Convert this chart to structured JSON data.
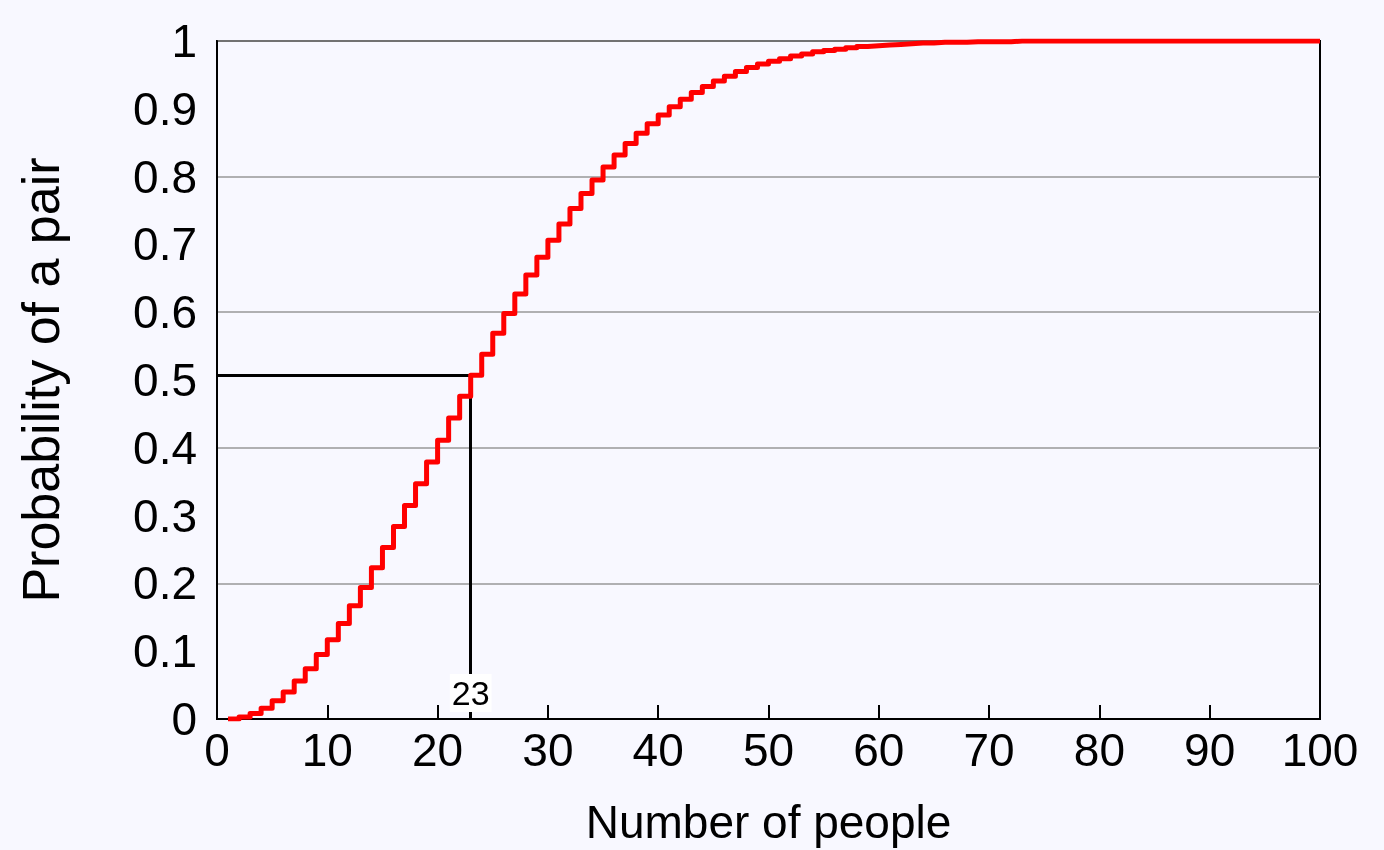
{
  "chart_data": {
    "type": "step",
    "xlabel": "Number of people",
    "ylabel": "Probability of a pair",
    "x": [
      1,
      2,
      3,
      4,
      5,
      6,
      7,
      8,
      9,
      10,
      11,
      12,
      13,
      14,
      15,
      16,
      17,
      18,
      19,
      20,
      21,
      22,
      23,
      24,
      25,
      26,
      27,
      28,
      29,
      30,
      31,
      32,
      33,
      34,
      35,
      36,
      37,
      38,
      39,
      40,
      41,
      42,
      43,
      44,
      45,
      46,
      47,
      48,
      49,
      50,
      51,
      52,
      53,
      54,
      55,
      56,
      57,
      58,
      59,
      60,
      61,
      62,
      63,
      64,
      65,
      66,
      67,
      68,
      69,
      70,
      71,
      72,
      73,
      74,
      75,
      76,
      77,
      78,
      79,
      80,
      81,
      82,
      83,
      84,
      85,
      86,
      87,
      88,
      89,
      90,
      91,
      92,
      93,
      94,
      95,
      96,
      97,
      98,
      99,
      100
    ],
    "series": [
      {
        "color": "#ff0000",
        "values": [
          0,
          0.003,
          0.008,
          0.016,
          0.027,
          0.04,
          0.056,
          0.074,
          0.095,
          0.117,
          0.141,
          0.167,
          0.194,
          0.223,
          0.253,
          0.284,
          0.315,
          0.347,
          0.379,
          0.411,
          0.444,
          0.476,
          0.507,
          0.538,
          0.569,
          0.598,
          0.627,
          0.655,
          0.681,
          0.706,
          0.73,
          0.753,
          0.775,
          0.795,
          0.814,
          0.832,
          0.849,
          0.864,
          0.878,
          0.891,
          0.903,
          0.914,
          0.924,
          0.933,
          0.941,
          0.948,
          0.955,
          0.961,
          0.966,
          0.97,
          0.974,
          0.978,
          0.981,
          0.984,
          0.986,
          0.988,
          0.99,
          0.992,
          0.993,
          0.994,
          0.995,
          0.996,
          0.997,
          0.997,
          0.998,
          0.998,
          0.998,
          0.999,
          0.999,
          0.999,
          0.999,
          1.0,
          1.0,
          1.0,
          1.0,
          1.0,
          1.0,
          1.0,
          1.0,
          1.0,
          1.0,
          1.0,
          1.0,
          1.0,
          1.0,
          1.0,
          1.0,
          1.0,
          1.0,
          1.0,
          1.0,
          1.0,
          1.0,
          1.0,
          1.0,
          1.0,
          1.0,
          1.0,
          1.0,
          1.0
        ]
      }
    ],
    "xlim": [
      0,
      100
    ],
    "xticks": [
      0,
      10,
      20,
      30,
      40,
      50,
      60,
      70,
      80,
      90,
      100
    ],
    "ylim": [
      0,
      1
    ],
    "yticks": [
      0,
      0.1,
      0.2,
      0.3,
      0.4,
      0.5,
      0.6,
      0.7,
      0.8,
      0.9,
      1
    ],
    "grid": "y",
    "line_style": "solid",
    "ref_lines": [
      {
        "axis": "x",
        "value": 23,
        "label": "23",
        "color": "#000000"
      },
      {
        "axis": "y",
        "value": 0.507,
        "color": "#000000"
      }
    ]
  }
}
